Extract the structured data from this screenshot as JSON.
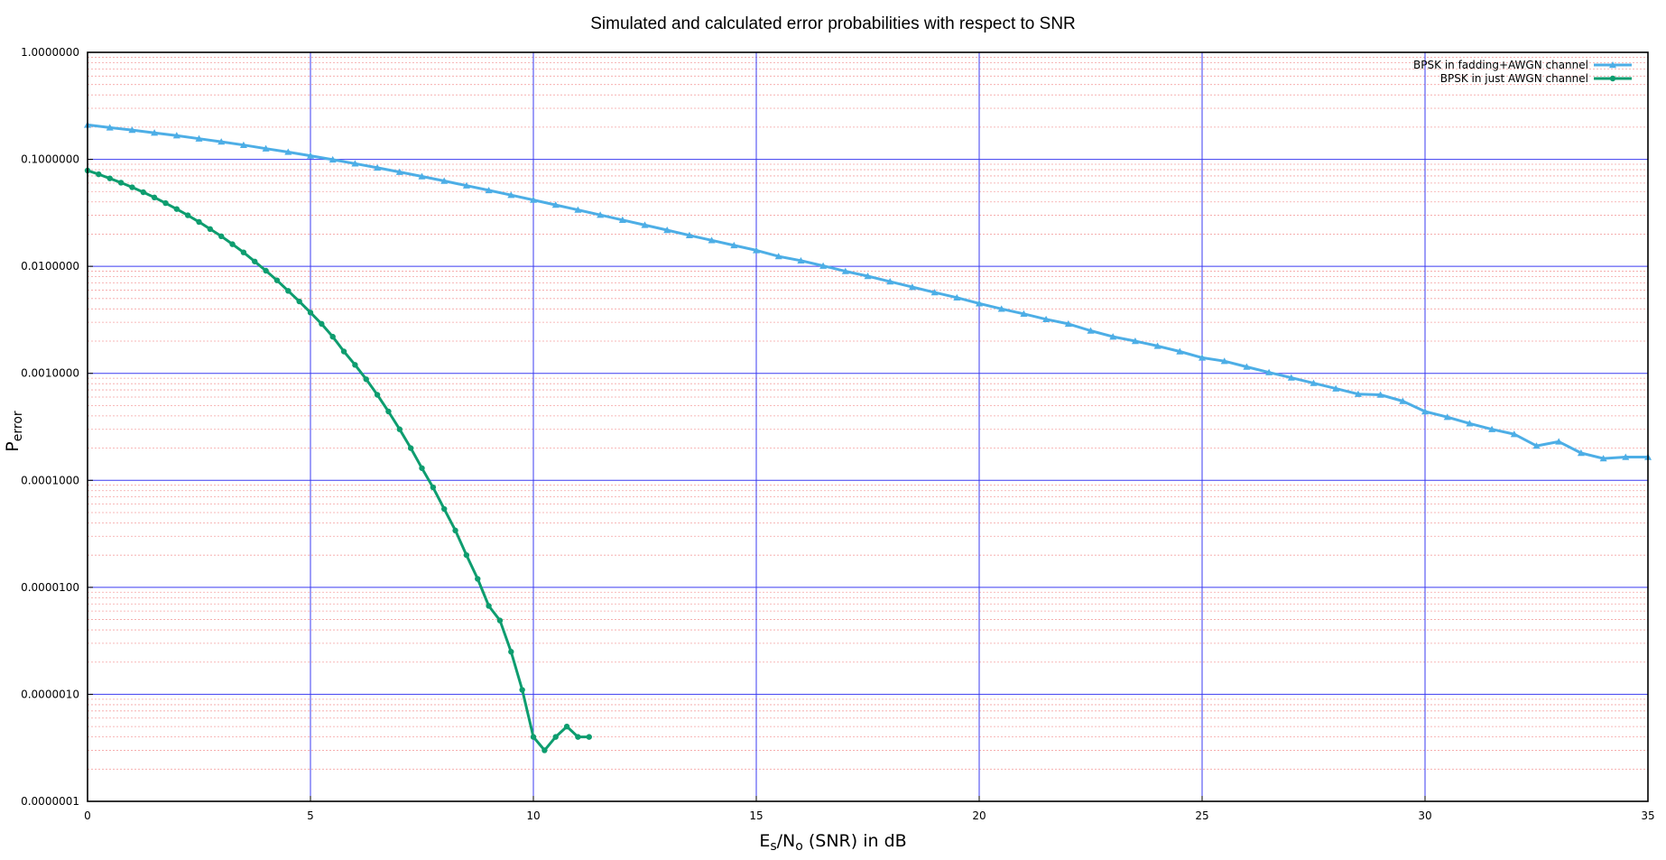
{
  "chart_data": {
    "type": "line",
    "title": "Simulated and calculated error probabilities with respect to SNR",
    "xlabel": {
      "main": "E",
      "sub": "s",
      "mid": "/N",
      "sub2": "o",
      "rest": " (SNR) in dB"
    },
    "ylabel": {
      "main": "P",
      "sub": "error"
    },
    "xlim": [
      0,
      35
    ],
    "ylim": [
      1e-07,
      1
    ],
    "yscale": "log",
    "grid": true,
    "legend_position": "top-right",
    "x_ticks": [
      0,
      5,
      10,
      15,
      20,
      25,
      30,
      35
    ],
    "x_tick_labels": [
      "0",
      "5",
      "10",
      "15",
      "20",
      "25",
      "30",
      "35"
    ],
    "y_ticks": [
      1e-07,
      1e-06,
      1e-05,
      0.0001,
      0.001,
      0.01,
      0.1,
      1
    ],
    "y_tick_labels": [
      "0.0000001",
      "0.0000010",
      "0.0000100",
      "0.0001000",
      "0.0010000",
      "0.0100000",
      "0.1000000",
      "1.0000000"
    ],
    "series": [
      {
        "name": "BPSK in fadding+AWGN channel",
        "color": "#4DAEE6",
        "marker": "triangle",
        "x": [
          0,
          0.5,
          1,
          1.5,
          2,
          2.5,
          3,
          3.5,
          4,
          4.5,
          5,
          5.5,
          6,
          6.5,
          7,
          7.5,
          8,
          8.5,
          9,
          9.5,
          10,
          10.5,
          11,
          11.5,
          12,
          12.5,
          13,
          13.5,
          14,
          14.5,
          15,
          15.5,
          16,
          16.5,
          17,
          17.5,
          18,
          18.5,
          19,
          19.5,
          20,
          20.5,
          21,
          21.5,
          22,
          22.5,
          23,
          23.5,
          24,
          24.5,
          25,
          25.5,
          26,
          26.5,
          27,
          27.5,
          28,
          28.5,
          29,
          29.5,
          30,
          30.5,
          31,
          31.5,
          32,
          32.5,
          33,
          33.5,
          34,
          34.5,
          35
        ],
        "y": [
          0.21,
          0.198,
          0.188,
          0.177,
          0.167,
          0.156,
          0.146,
          0.136,
          0.126,
          0.117,
          0.108,
          0.0994,
          0.0912,
          0.0834,
          0.0761,
          0.0692,
          0.0628,
          0.0568,
          0.0513,
          0.0463,
          0.0417,
          0.0375,
          0.0337,
          0.0302,
          0.0271,
          0.0243,
          0.0218,
          0.0195,
          0.0175,
          0.0157,
          0.0141,
          0.0124,
          0.0113,
          0.0101,
          0.009,
          0.0081,
          0.0072,
          0.0064,
          0.0057,
          0.0051,
          0.0045,
          0.004,
          0.0036,
          0.0032,
          0.0029,
          0.0025,
          0.0022,
          0.002,
          0.0018,
          0.0016,
          0.0014,
          0.0013,
          0.00115,
          0.00102,
          0.00091,
          0.00081,
          0.00072,
          0.00064,
          0.00063,
          0.00055,
          0.00044,
          0.00039,
          0.00034,
          0.0003,
          0.00027,
          0.00021,
          0.00023,
          0.00018,
          0.00016,
          0.000165,
          0.000165
        ]
      },
      {
        "name": "BPSK in just AWGN channel",
        "color": "#0E9D6F",
        "marker": "circle",
        "x": [
          0,
          0.25,
          0.5,
          0.75,
          1,
          1.25,
          1.5,
          1.75,
          2,
          2.25,
          2.5,
          2.75,
          3,
          3.25,
          3.5,
          3.75,
          4,
          4.25,
          4.5,
          4.75,
          5,
          5.25,
          5.5,
          5.75,
          6,
          6.25,
          6.5,
          6.75,
          7,
          7.25,
          7.5,
          7.75,
          8,
          8.25,
          8.5,
          8.75,
          9,
          9.25,
          9.5,
          9.75,
          10,
          10.25,
          10.5,
          10.75,
          11,
          11.25
        ],
        "y": [
          0.0786,
          0.0725,
          0.0664,
          0.0605,
          0.0548,
          0.0493,
          0.044,
          0.039,
          0.0343,
          0.03,
          0.026,
          0.0223,
          0.0191,
          0.0161,
          0.0135,
          0.0111,
          0.0091,
          0.0074,
          0.0059,
          0.0047,
          0.0037,
          0.0029,
          0.0022,
          0.0016,
          0.0012,
          0.00088,
          0.00063,
          0.00044,
          0.0003,
          0.0002,
          0.00013,
          8.6e-05,
          5.4e-05,
          3.4e-05,
          2e-05,
          1.2e-05,
          6.7e-06,
          4.9e-06,
          2.5e-06,
          1.1e-06,
          4e-07,
          3e-07,
          4e-07,
          5e-07,
          4e-07,
          4e-07
        ]
      }
    ]
  }
}
